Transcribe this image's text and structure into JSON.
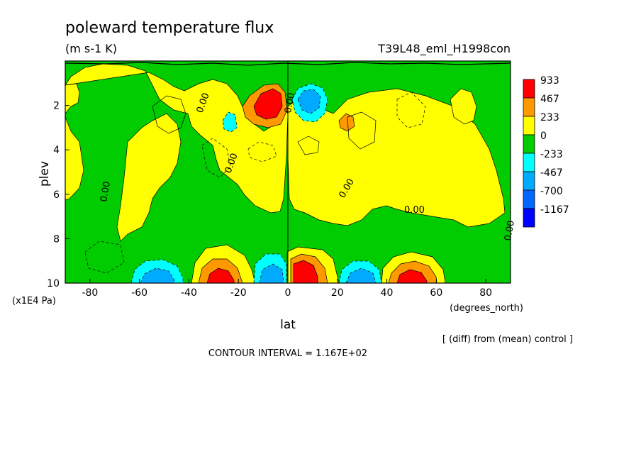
{
  "chart_data": {
    "type": "contour",
    "title": "poleward temperature flux",
    "units": "(m s-1 K)",
    "run_label": "T39L48_eml_H1998con",
    "xlabel": "lat",
    "x_units": "(degrees_north)",
    "ylabel": "plev",
    "y_units": "(x1E4 Pa)",
    "x_ticks": [
      -80,
      -60,
      -40,
      -20,
      0,
      20,
      40,
      60,
      80
    ],
    "y_ticks": [
      2,
      4,
      6,
      8,
      10
    ],
    "xlim": [
      -90,
      90
    ],
    "ylim": [
      0,
      10
    ],
    "y_inverted": true,
    "legend": {
      "labels": [
        "933",
        "467",
        "233",
        "0",
        "-233",
        "-467",
        "-700",
        "-1167"
      ],
      "colors": [
        "#ff0000",
        "#ff9900",
        "#ffff00",
        "#00cc00",
        "#00ffff",
        "#00aaff",
        "#0066ff",
        "#0000ff"
      ]
    },
    "contour_labels": [
      "0.00",
      "0.00",
      "0.00",
      "0.00",
      "0.00",
      "0.00",
      "0.00"
    ],
    "footer_note": "[ (diff) from (mean) control ]",
    "contour_interval": "CONTOUR INTERVAL = 1.167E+02"
  }
}
